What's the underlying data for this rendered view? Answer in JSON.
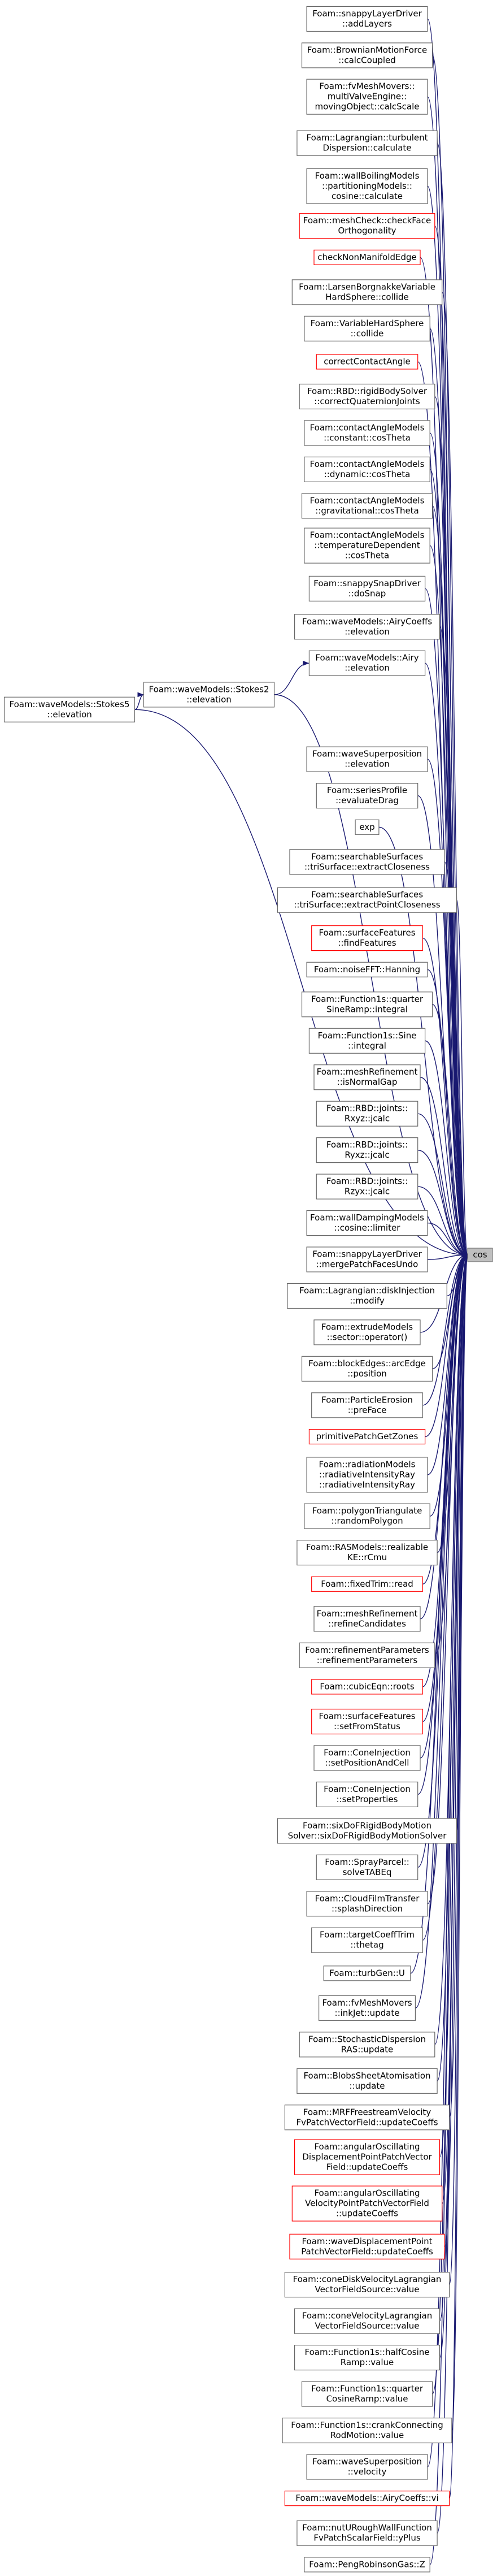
{
  "target": "cos",
  "callers": [
    {
      "lines": [
        "Foam::snappyLayerDriver",
        "::addLayers"
      ]
    },
    {
      "lines": [
        "Foam::BrownianMotionForce",
        "::calcCoupled"
      ]
    },
    {
      "lines": [
        "Foam::fvMeshMovers::",
        "multiValveEngine::",
        "movingObject::calcScale"
      ]
    },
    {
      "lines": [
        "Foam::Lagrangian::turbulent",
        "Dispersion::calculate"
      ]
    },
    {
      "lines": [
        "Foam::wallBoilingModels",
        "::partitioningModels::",
        "cosine::calculate"
      ]
    },
    {
      "lines": [
        "Foam::meshCheck::checkFace",
        "Orthogonality"
      ],
      "color": "#ff0000"
    },
    {
      "lines": [
        "checkNonManifoldEdge"
      ],
      "color": "#ff0000"
    },
    {
      "lines": [
        "Foam::LarsenBorgnakkeVariable",
        "HardSphere::collide"
      ]
    },
    {
      "lines": [
        "Foam::VariableHardSphere",
        "::collide"
      ]
    },
    {
      "lines": [
        "correctContactAngle"
      ],
      "color": "#ff0000"
    },
    {
      "lines": [
        "Foam::RBD::rigidBodySolver",
        "::correctQuaternionJoints"
      ]
    },
    {
      "lines": [
        "Foam::contactAngleModels",
        "::constant::cosTheta"
      ]
    },
    {
      "lines": [
        "Foam::contactAngleModels",
        "::dynamic::cosTheta"
      ]
    },
    {
      "lines": [
        "Foam::contactAngleModels",
        "::gravitational::cosTheta"
      ]
    },
    {
      "lines": [
        "Foam::contactAngleModels",
        "::temperatureDependent",
        "::cosTheta"
      ]
    },
    {
      "lines": [
        "Foam::snappySnapDriver",
        "::doSnap"
      ]
    },
    {
      "lines": [
        "Foam::waveModels::AiryCoeffs",
        "::elevation"
      ]
    },
    {
      "lines": [
        "Foam::waveModels::Airy",
        "::elevation"
      ]
    },
    {
      "lines": [
        "Foam::waveModels::Stokes2",
        "::elevation"
      ]
    },
    {
      "lines": [
        "Foam::waveModels::Stokes5",
        "::elevation"
      ]
    },
    {
      "lines": [
        "Foam::waveSuperposition",
        "::elevation"
      ]
    },
    {
      "lines": [
        "Foam::seriesProfile",
        "::evaluateDrag"
      ]
    },
    {
      "lines": [
        "exp"
      ]
    },
    {
      "lines": [
        "Foam::searchableSurfaces",
        "::triSurface::extractCloseness"
      ]
    },
    {
      "lines": [
        "Foam::searchableSurfaces",
        "::triSurface::extractPointCloseness"
      ]
    },
    {
      "lines": [
        "Foam::surfaceFeatures",
        "::findFeatures"
      ],
      "color": "#ff0000"
    },
    {
      "lines": [
        "Foam::noiseFFT::Hanning"
      ]
    },
    {
      "lines": [
        "Foam::Function1s::quarter",
        "SineRamp::integral"
      ]
    },
    {
      "lines": [
        "Foam::Function1s::Sine",
        "::integral"
      ]
    },
    {
      "lines": [
        "Foam::meshRefinement",
        "::isNormalGap"
      ]
    },
    {
      "lines": [
        "Foam::RBD::joints::",
        "Rxyz::jcalc"
      ]
    },
    {
      "lines": [
        "Foam::RBD::joints::",
        "Ryxz::jcalc"
      ]
    },
    {
      "lines": [
        "Foam::RBD::joints::",
        "Rzyx::jcalc"
      ]
    },
    {
      "lines": [
        "Foam::wallDampingModels",
        "::cosine::limiter"
      ]
    },
    {
      "lines": [
        "Foam::snappyLayerDriver",
        "::mergePatchFacesUndo"
      ]
    },
    {
      "lines": [
        "Foam::Lagrangian::diskInjection",
        "::modify"
      ]
    },
    {
      "lines": [
        "Foam::extrudeModels",
        "::sector::operator()"
      ]
    },
    {
      "lines": [
        "Foam::blockEdges::arcEdge",
        "::position"
      ]
    },
    {
      "lines": [
        "Foam::ParticleErosion",
        "::preFace"
      ]
    },
    {
      "lines": [
        "primitivePatchGetZones"
      ],
      "color": "#ff0000"
    },
    {
      "lines": [
        "Foam::radiationModels",
        "::radiativeIntensityRay",
        "::radiativeIntensityRay"
      ]
    },
    {
      "lines": [
        "Foam::polygonTriangulate",
        "::randomPolygon"
      ]
    },
    {
      "lines": [
        "Foam::RASModels::realizable",
        "KE::rCmu"
      ]
    },
    {
      "lines": [
        "Foam::fixedTrim::read"
      ],
      "color": "#ff0000"
    },
    {
      "lines": [
        "Foam::meshRefinement",
        "::refineCandidates"
      ]
    },
    {
      "lines": [
        "Foam::refinementParameters",
        "::refinementParameters"
      ]
    },
    {
      "lines": [
        "Foam::cubicEqn::roots"
      ],
      "color": "#ff0000"
    },
    {
      "lines": [
        "Foam::surfaceFeatures",
        "::setFromStatus"
      ],
      "color": "#ff0000"
    },
    {
      "lines": [
        "Foam::ConeInjection",
        "::setPositionAndCell"
      ]
    },
    {
      "lines": [
        "Foam::ConeInjection",
        "::setProperties"
      ]
    },
    {
      "lines": [
        "Foam::sixDoFRigidBodyMotion",
        "Solver::sixDoFRigidBodyMotionSolver"
      ]
    },
    {
      "lines": [
        "Foam::SprayParcel::",
        "solveTABEq"
      ]
    },
    {
      "lines": [
        "Foam::CloudFilmTransfer",
        "::splashDirection"
      ]
    },
    {
      "lines": [
        "Foam::targetCoeffTrim",
        "::thetag"
      ]
    },
    {
      "lines": [
        "Foam::turbGen::U"
      ]
    },
    {
      "lines": [
        "Foam::fvMeshMovers",
        "::inkJet::update"
      ]
    },
    {
      "lines": [
        "Foam::StochasticDispersion",
        "RAS::update"
      ]
    },
    {
      "lines": [
        "Foam::BlobsSheetAtomisation",
        "::update"
      ]
    },
    {
      "lines": [
        "Foam::MRFFreestreamVelocity",
        "FvPatchVectorField::updateCoeffs"
      ]
    },
    {
      "lines": [
        "Foam::angularOscillating",
        "DisplacementPointPatchVector",
        "Field::updateCoeffs"
      ],
      "color": "#ff0000"
    },
    {
      "lines": [
        "Foam::angularOscillating",
        "VelocityPointPatchVectorField",
        "::updateCoeffs"
      ],
      "color": "#ff0000"
    },
    {
      "lines": [
        "Foam::waveDisplacementPoint",
        "PatchVectorField::updateCoeffs"
      ],
      "color": "#ff0000"
    },
    {
      "lines": [
        "Foam::coneDiskVelocityLagrangian",
        "VectorFieldSource::value"
      ]
    },
    {
      "lines": [
        "Foam::coneVelocityLagrangian",
        "VectorFieldSource::value"
      ]
    },
    {
      "lines": [
        "Foam::Function1s::halfCosine",
        "Ramp::value"
      ]
    },
    {
      "lines": [
        "Foam::Function1s::quarter",
        "CosineRamp::value"
      ]
    },
    {
      "lines": [
        "Foam::Function1s::crankConnecting",
        "RodMotion::value"
      ]
    },
    {
      "lines": [
        "Foam::waveSuperposition",
        "::velocity"
      ]
    },
    {
      "lines": [
        "Foam::waveModels::AiryCoeffs::vi"
      ],
      "color": "#ff0000"
    },
    {
      "lines": [
        "Foam::nutURoughWallFunction",
        "FvPatchScalarField::yPlus"
      ]
    },
    {
      "lines": [
        "Foam::PengRobinsonGas::Z"
      ]
    }
  ]
}
